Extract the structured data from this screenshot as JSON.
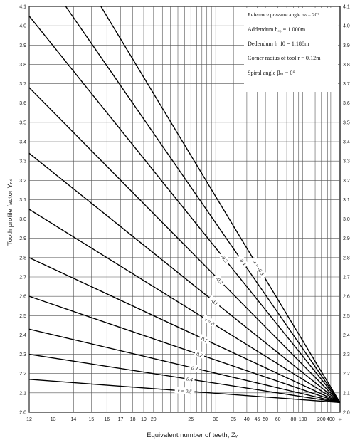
{
  "chart_data": {
    "type": "line",
    "title": "",
    "xlabel": "Equivalent number of teeth, Zᵥ",
    "ylabel": "Tooth profile factor  Yₙₛ",
    "x_scale": "reciprocal",
    "x_ticks": [
      "12",
      "13",
      "14",
      "15",
      "16",
      "17",
      "18",
      "19",
      "20",
      "25",
      "30",
      "35",
      "40",
      "45",
      "50",
      "60",
      "80",
      "100",
      "200",
      "400",
      "∞"
    ],
    "y_ticks": [
      "2.0",
      "2.1",
      "2.2",
      "2.3",
      "2.4",
      "2.5",
      "2.6",
      "2.7",
      "2.8",
      "2.9",
      "3.0",
      "3.1",
      "3.2",
      "3.3",
      "3.4",
      "3.5",
      "3.6",
      "3.7",
      "3.8",
      "3.9",
      "4.0",
      "4.1"
    ],
    "ylim": [
      2.0,
      4.1
    ],
    "grid": true,
    "series": [
      {
        "name": "x = -0.5",
        "label": "x = -0.5",
        "z_start": 15.6,
        "y_start": 4.1,
        "y_end": 2.05
      },
      {
        "name": "-0.4",
        "label": "-0.4",
        "z_start": 13.6,
        "y_start": 4.1,
        "y_end": 2.05
      },
      {
        "name": "-0.3",
        "label": "-0.3",
        "z_start": 12,
        "y_start": 4.05,
        "y_end": 2.05
      },
      {
        "name": "-0.2",
        "label": "-0.2",
        "z_start": 12,
        "y_start": 3.68,
        "y_end": 2.05
      },
      {
        "name": "-0.1",
        "label": "-0.1",
        "z_start": 12,
        "y_start": 3.34,
        "y_end": 2.05
      },
      {
        "name": "x = 0",
        "label": "x = 0",
        "z_start": 12,
        "y_start": 3.05,
        "y_end": 2.05
      },
      {
        "name": "0.1",
        "label": "0.1",
        "z_start": 12,
        "y_start": 2.8,
        "y_end": 2.05
      },
      {
        "name": "0.2",
        "label": "0.2",
        "z_start": 12,
        "y_start": 2.6,
        "y_end": 2.05
      },
      {
        "name": "0.3",
        "label": "0.3",
        "z_start": 12,
        "y_start": 2.43,
        "y_end": 2.05
      },
      {
        "name": "0.4",
        "label": "0.4",
        "z_start": 12,
        "y_start": 2.3,
        "y_end": 2.05
      },
      {
        "name": "x = 0.5",
        "label": "x = 0.5",
        "z_start": 12,
        "y_start": 2.17,
        "y_end": 2.05
      }
    ]
  },
  "legend": {
    "line1": "Reference pressure angle αₙ = 20°",
    "line2": "Addendum hₐ₀ = 1.000m",
    "line3": "Dedendum h_f0 = 1.188m",
    "line4": "Corner radius of tool  r = 0.12m",
    "line5": "Spiral angle βₘ = 0°"
  }
}
